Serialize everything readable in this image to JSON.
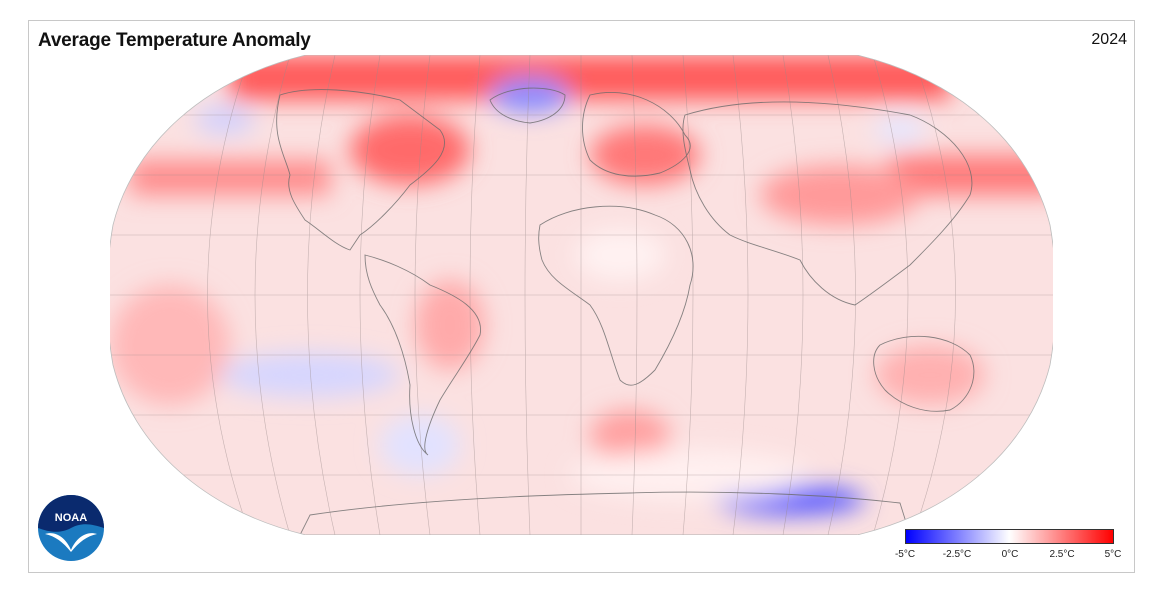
{
  "title": "Average Temperature Anomaly",
  "year": "2024",
  "logo_text": "NOAA",
  "legend": {
    "ticks": [
      "-5°C",
      "-2.5°C",
      "0°C",
      "2.5°C",
      "5°C"
    ],
    "min": -5,
    "max": 5,
    "colors": {
      "cold": "#0000ff",
      "neutral": "#ffffff",
      "warm": "#ff0000"
    }
  },
  "map": {
    "projection": "robinson",
    "anomaly_regions": [
      {
        "region": "Arctic / far north",
        "anomaly": 3.5
      },
      {
        "region": "Eastern Canada",
        "anomaly": 3.0
      },
      {
        "region": "Eastern Europe",
        "anomaly": 3.0
      },
      {
        "region": "Northern Asia",
        "anomaly": 2.5
      },
      {
        "region": "Tropical Atlantic",
        "anomaly": 1.5
      },
      {
        "region": "Eastern Pacific (south of equator)",
        "anomaly": -1.0
      },
      {
        "region": "Southern Ocean (Indian sector)",
        "anomaly": -2.5
      },
      {
        "region": "Greenland Sea",
        "anomaly": -1.5
      }
    ]
  }
}
